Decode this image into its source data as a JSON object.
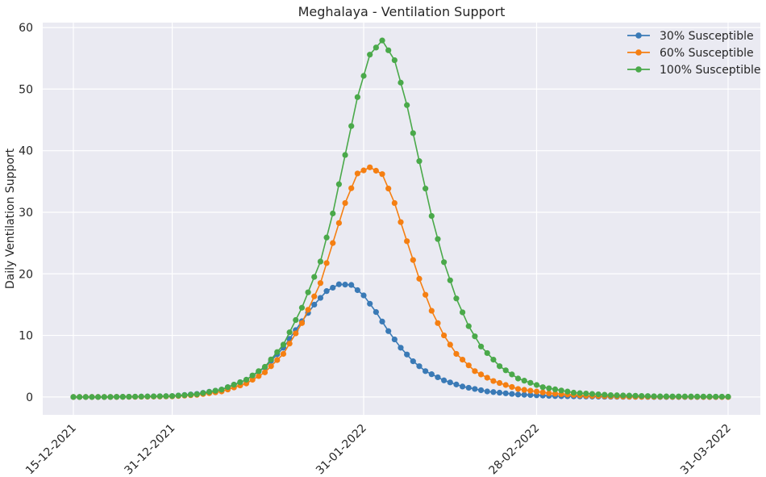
{
  "chart_data": {
    "type": "line",
    "title": "Meghalaya - Ventilation Support",
    "xlabel": "",
    "ylabel": "Daily Ventilation Support",
    "x_start": "2021-12-15",
    "x_end": "2022-03-31",
    "x_ticks": [
      {
        "date": "2021-12-15",
        "label": "15-12-2021"
      },
      {
        "date": "2021-12-31",
        "label": "31-12-2021"
      },
      {
        "date": "2022-01-31",
        "label": "31-01-2022"
      },
      {
        "date": "2022-02-28",
        "label": "28-02-2022"
      },
      {
        "date": "2022-03-31",
        "label": "31-03-2022"
      }
    ],
    "ylim": [
      -2.9,
      60.8
    ],
    "y_ticks": [
      0,
      10,
      20,
      30,
      40,
      50,
      60
    ],
    "grid": true,
    "legend_position": "top-right",
    "series": [
      {
        "name": "30% Susceptible",
        "color": "#3a7ab6",
        "peak": {
          "date": "2022-01-28",
          "value": 18.3
        },
        "points": [
          [
            "2021-12-15",
            0
          ],
          [
            "2021-12-20",
            0
          ],
          [
            "2021-12-25",
            0.05
          ],
          [
            "2021-12-31",
            0.15
          ],
          [
            "2022-01-04",
            0.5
          ],
          [
            "2022-01-08",
            1.2
          ],
          [
            "2022-01-12",
            2.8
          ],
          [
            "2022-01-15",
            4.8
          ],
          [
            "2022-01-18",
            8.0
          ],
          [
            "2022-01-21",
            12.3
          ],
          [
            "2022-01-23",
            15.0
          ],
          [
            "2022-01-25",
            17.2
          ],
          [
            "2022-01-27",
            18.3
          ],
          [
            "2022-01-29",
            18.2
          ],
          [
            "2022-01-31",
            16.5
          ],
          [
            "2022-02-02",
            13.8
          ],
          [
            "2022-02-04",
            10.7
          ],
          [
            "2022-02-06",
            8.0
          ],
          [
            "2022-02-08",
            5.8
          ],
          [
            "2022-02-10",
            4.2
          ],
          [
            "2022-02-13",
            2.7
          ],
          [
            "2022-02-16",
            1.7
          ],
          [
            "2022-02-20",
            0.9
          ],
          [
            "2022-02-25",
            0.4
          ],
          [
            "2022-03-03",
            0.15
          ],
          [
            "2022-03-10",
            0.05
          ],
          [
            "2022-03-20",
            0
          ],
          [
            "2022-03-31",
            0
          ]
        ]
      },
      {
        "name": "60% Susceptible",
        "color": "#f57f12",
        "peak": {
          "date": "2022-02-01",
          "value": 37.3
        },
        "points": [
          [
            "2021-12-15",
            0
          ],
          [
            "2021-12-20",
            0
          ],
          [
            "2021-12-25",
            0.03
          ],
          [
            "2021-12-31",
            0.1
          ],
          [
            "2022-01-04",
            0.35
          ],
          [
            "2022-01-08",
            0.9
          ],
          [
            "2022-01-12",
            2.2
          ],
          [
            "2022-01-15",
            4.0
          ],
          [
            "2022-01-18",
            7.0
          ],
          [
            "2022-01-21",
            12.0
          ],
          [
            "2022-01-24",
            18.5
          ],
          [
            "2022-01-26",
            25.0
          ],
          [
            "2022-01-28",
            31.5
          ],
          [
            "2022-01-30",
            36.3
          ],
          [
            "2022-02-01",
            37.3
          ],
          [
            "2022-02-03",
            36.2
          ],
          [
            "2022-02-05",
            31.5
          ],
          [
            "2022-02-07",
            25.3
          ],
          [
            "2022-02-09",
            19.2
          ],
          [
            "2022-02-11",
            14.0
          ],
          [
            "2022-02-13",
            10.0
          ],
          [
            "2022-02-15",
            7.0
          ],
          [
            "2022-02-18",
            4.2
          ],
          [
            "2022-02-21",
            2.6
          ],
          [
            "2022-02-25",
            1.3
          ],
          [
            "2022-03-02",
            0.6
          ],
          [
            "2022-03-08",
            0.2
          ],
          [
            "2022-03-15",
            0.05
          ],
          [
            "2022-03-31",
            0
          ]
        ]
      },
      {
        "name": "100% Susceptible",
        "color": "#4aa94a",
        "peak": {
          "date": "2022-02-04",
          "value": 57.9
        },
        "points": [
          [
            "2021-12-15",
            0
          ],
          [
            "2021-12-20",
            0
          ],
          [
            "2021-12-25",
            0.05
          ],
          [
            "2021-12-31",
            0.15
          ],
          [
            "2022-01-04",
            0.45
          ],
          [
            "2022-01-08",
            1.2
          ],
          [
            "2022-01-12",
            2.8
          ],
          [
            "2022-01-15",
            4.9
          ],
          [
            "2022-01-18",
            8.5
          ],
          [
            "2022-01-21",
            14.5
          ],
          [
            "2022-01-24",
            22.0
          ],
          [
            "2022-01-26",
            29.8
          ],
          [
            "2022-01-28",
            39.3
          ],
          [
            "2022-01-30",
            48.7
          ],
          [
            "2022-02-01",
            55.6
          ],
          [
            "2022-02-03",
            57.9
          ],
          [
            "2022-02-05",
            54.7
          ],
          [
            "2022-02-07",
            47.4
          ],
          [
            "2022-02-09",
            38.3
          ],
          [
            "2022-02-11",
            29.4
          ],
          [
            "2022-02-13",
            21.9
          ],
          [
            "2022-02-15",
            16.0
          ],
          [
            "2022-02-17",
            11.5
          ],
          [
            "2022-02-19",
            8.2
          ],
          [
            "2022-02-22",
            5.0
          ],
          [
            "2022-02-25",
            3.0
          ],
          [
            "2022-03-01",
            1.6
          ],
          [
            "2022-03-06",
            0.7
          ],
          [
            "2022-03-12",
            0.3
          ],
          [
            "2022-03-20",
            0.1
          ],
          [
            "2022-03-31",
            0.05
          ]
        ]
      }
    ]
  }
}
